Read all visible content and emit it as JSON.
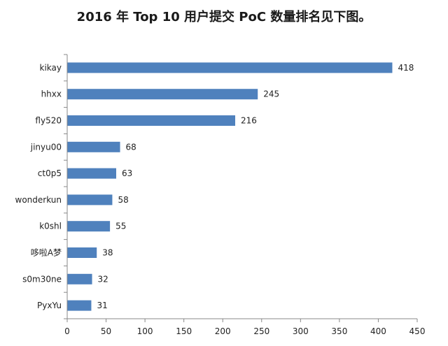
{
  "chart_data": {
    "type": "bar",
    "orientation": "horizontal",
    "title": "2016 年 Top 10 用户提交 PoC 数量排名见下图。",
    "categories": [
      "kikay",
      "hhxx",
      "fly520",
      "jinyu00",
      "ct0p5",
      "wonderkun",
      "k0shl",
      "哆啦A梦",
      "s0m30ne",
      "PyxYu"
    ],
    "values": [
      418,
      245,
      216,
      68,
      63,
      58,
      55,
      38,
      32,
      31
    ],
    "xlim": [
      0,
      450
    ],
    "xticks": [
      0,
      50,
      100,
      150,
      200,
      250,
      300,
      350,
      400,
      450
    ],
    "bar_color": "#4f81bd",
    "grid": false,
    "xlabel": "",
    "ylabel": ""
  }
}
